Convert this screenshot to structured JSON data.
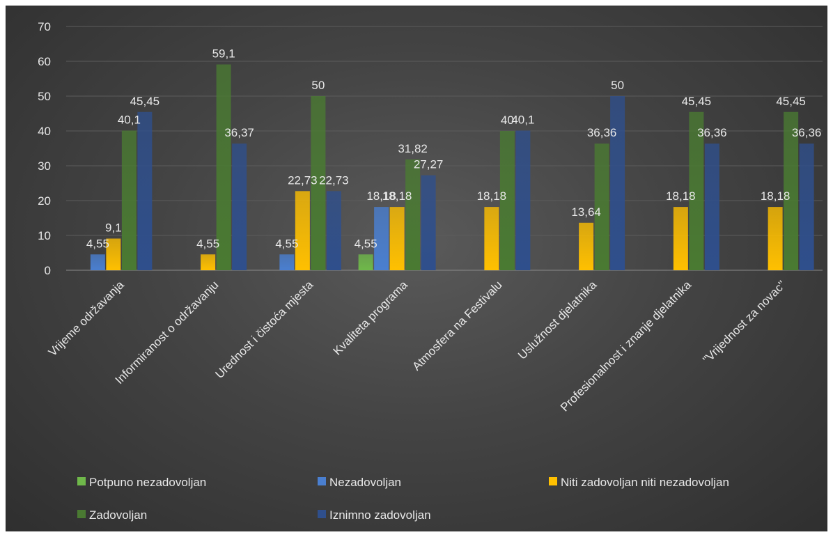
{
  "chart_data": {
    "type": "bar",
    "categories": [
      "Vrijeme održavanja",
      "Informiranost o održavanju",
      "Urednost i čistoća mjesta",
      "Kvaliteta programa",
      "Atmosfera na Festivalu",
      "Uslužnost djelatnika",
      "Profesionalnost i znanje djelatnika",
      "\"Vrijednost za novac\""
    ],
    "series": [
      {
        "name": "Potpuno nezadovoljan",
        "color": "#6fb84a",
        "values": [
          null,
          null,
          null,
          4.55,
          null,
          null,
          null,
          null
        ],
        "labels": [
          "",
          "",
          "",
          "4,55",
          "",
          "",
          "",
          ""
        ]
      },
      {
        "name": "Nezadovoljan",
        "color": "#4a7fd0",
        "values": [
          4.55,
          null,
          4.55,
          18.18,
          null,
          null,
          null,
          null
        ],
        "labels": [
          "4,55",
          "",
          "4,55",
          "18,18",
          "",
          "",
          "",
          ""
        ]
      },
      {
        "name": "Niti zadovoljan niti nezadovoljan",
        "color": "#ffc000",
        "values": [
          9.1,
          4.55,
          22.73,
          18.18,
          18.18,
          13.64,
          18.18,
          18.18
        ],
        "labels": [
          "9,1",
          "4,55",
          "22,73",
          "18,18",
          "18,18",
          "13,64",
          "18,18",
          "18,18"
        ]
      },
      {
        "name": "Zadovoljan",
        "color": "#4a7a32",
        "values": [
          40.1,
          59.1,
          50,
          31.82,
          40,
          36.36,
          45.45,
          45.45
        ],
        "labels": [
          "40,1",
          "59,1",
          "50",
          "31,82",
          "40",
          "36,36",
          "45,45",
          "45,45"
        ]
      },
      {
        "name": "Iznimno zadovoljan",
        "color": "#2f4f8c",
        "values": [
          45.45,
          36.37,
          22.73,
          27.27,
          40.1,
          50,
          36.36,
          36.36
        ],
        "labels": [
          "45,45",
          "36,37",
          "22,73",
          "27,27",
          "40,1",
          "50",
          "36,36",
          "36,36"
        ]
      }
    ],
    "ylim": [
      0,
      70
    ],
    "yticks": [
      0,
      10,
      20,
      30,
      40,
      50,
      60,
      70
    ],
    "grid": true,
    "legend": "bottom"
  }
}
